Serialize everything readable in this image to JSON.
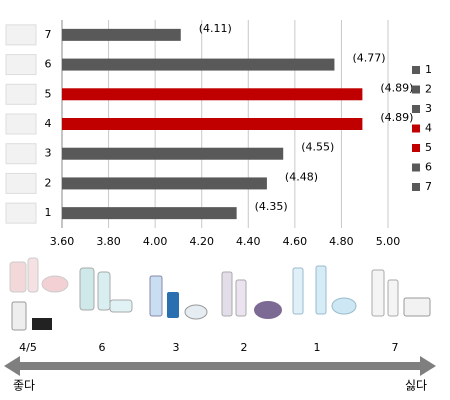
{
  "chart_data": {
    "type": "hbar",
    "categories": [
      "1",
      "2",
      "3",
      "4",
      "5",
      "6",
      "7"
    ],
    "values": [
      4.35,
      4.48,
      4.55,
      4.89,
      4.89,
      4.77,
      4.11
    ],
    "value_labels": [
      "(4.35)",
      "(4.48)",
      "(4.55)",
      "(4.89)",
      "(4.89)",
      "(4.77)",
      "(4.11)"
    ],
    "colors": [
      "#595959",
      "#595959",
      "#595959",
      "#c00000",
      "#c00000",
      "#595959",
      "#595959"
    ],
    "xlim": [
      3.6,
      5.0
    ],
    "xticks": [
      {
        "value": 3.6,
        "label": "3.60"
      },
      {
        "value": 3.8,
        "label": "3.80"
      },
      {
        "value": 4.0,
        "label": "4.00"
      },
      {
        "value": 4.2,
        "label": "4.20"
      },
      {
        "value": 4.4,
        "label": "4.40"
      },
      {
        "value": 4.6,
        "label": "4.60"
      },
      {
        "value": 4.8,
        "label": "4.80"
      },
      {
        "value": 5.0,
        "label": "5.00"
      }
    ],
    "grid": true,
    "legend": "right"
  },
  "scale": {
    "groups": [
      "4/5",
      "6",
      "3",
      "2",
      "1",
      "7"
    ],
    "left": "좋다",
    "right": "싫다"
  }
}
